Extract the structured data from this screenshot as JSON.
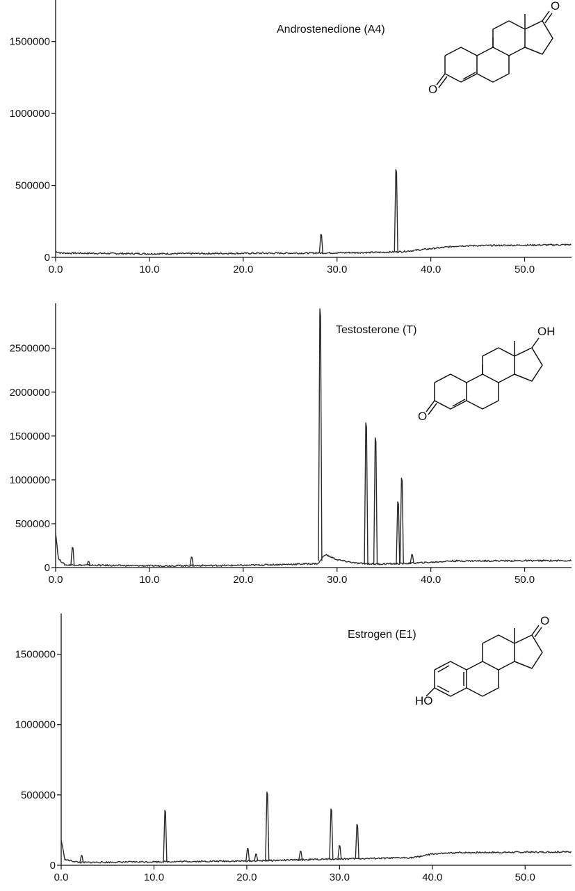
{
  "chart_data": [
    {
      "type": "line",
      "title": "Androstenedione (A4)",
      "xlim": [
        0,
        55
      ],
      "ylim": [
        0,
        1750000
      ],
      "x_ticks": [
        "0.0",
        "10.0",
        "20.0",
        "30.0",
        "40.0",
        "50.0"
      ],
      "y_ticks": [
        "0",
        "500000",
        "1000000",
        "1500000"
      ],
      "baseline": [
        [
          0,
          40000
        ],
        [
          0.5,
          30000
        ],
        [
          10,
          25000
        ],
        [
          20,
          28000
        ],
        [
          28,
          30000
        ],
        [
          35,
          35000
        ],
        [
          37,
          40000
        ],
        [
          40,
          60000
        ],
        [
          43,
          80000
        ],
        [
          50,
          85000
        ],
        [
          55,
          88000
        ]
      ],
      "peaks": [
        [
          28.3,
          160000
        ],
        [
          36.3,
          610000
        ]
      ],
      "structure_labels": [
        "O",
        "O"
      ]
    },
    {
      "type": "line",
      "title": "Testosterone (T)",
      "xlim": [
        0,
        55
      ],
      "ylim": [
        0,
        2950000
      ],
      "x_ticks": [
        "0.0",
        "10.0",
        "20.0",
        "30.0",
        "40.0",
        "50.0"
      ],
      "y_ticks": [
        "0",
        "500000",
        "1000000",
        "1500000",
        "2000000",
        "2500000"
      ],
      "baseline": [
        [
          0,
          400000
        ],
        [
          0.3,
          100000
        ],
        [
          1,
          30000
        ],
        [
          10,
          20000
        ],
        [
          20,
          25000
        ],
        [
          26,
          40000
        ],
        [
          28,
          45000
        ],
        [
          28.7,
          150000
        ],
        [
          30,
          90000
        ],
        [
          32,
          50000
        ],
        [
          34,
          40000
        ],
        [
          37,
          45000
        ],
        [
          40,
          60000
        ],
        [
          42,
          75000
        ],
        [
          55,
          80000
        ]
      ],
      "peaks": [
        [
          1.8,
          230000
        ],
        [
          3.5,
          70000
        ],
        [
          14.5,
          120000
        ],
        [
          28.2,
          2950000
        ],
        [
          33.1,
          1650000
        ],
        [
          34.1,
          1480000
        ],
        [
          36.5,
          750000
        ],
        [
          36.9,
          1020000
        ],
        [
          38.0,
          150000
        ]
      ],
      "structure_labels": [
        "OH",
        "O"
      ]
    },
    {
      "type": "line",
      "title": "Estrogen (E1)",
      "xlim": [
        0,
        55
      ],
      "ylim": [
        0,
        1750000
      ],
      "x_ticks": [
        "0.0",
        "10.0",
        "20.0",
        "30.0",
        "40.0",
        "50.0"
      ],
      "y_ticks": [
        "0",
        "500000",
        "1000000",
        "1500000"
      ],
      "baseline": [
        [
          0,
          180000
        ],
        [
          0.4,
          40000
        ],
        [
          2,
          20000
        ],
        [
          10,
          25000
        ],
        [
          20,
          30000
        ],
        [
          30,
          45000
        ],
        [
          35,
          50000
        ],
        [
          38,
          55000
        ],
        [
          40,
          80000
        ],
        [
          43,
          90000
        ],
        [
          55,
          95000
        ]
      ],
      "peaks": [
        [
          2.2,
          70000
        ],
        [
          11.2,
          390000
        ],
        [
          20.1,
          120000
        ],
        [
          21.0,
          80000
        ],
        [
          22.2,
          520000
        ],
        [
          25.8,
          100000
        ],
        [
          29.1,
          400000
        ],
        [
          30.0,
          140000
        ],
        [
          31.9,
          290000
        ]
      ],
      "structure_labels": [
        "O",
        "HO"
      ]
    }
  ]
}
